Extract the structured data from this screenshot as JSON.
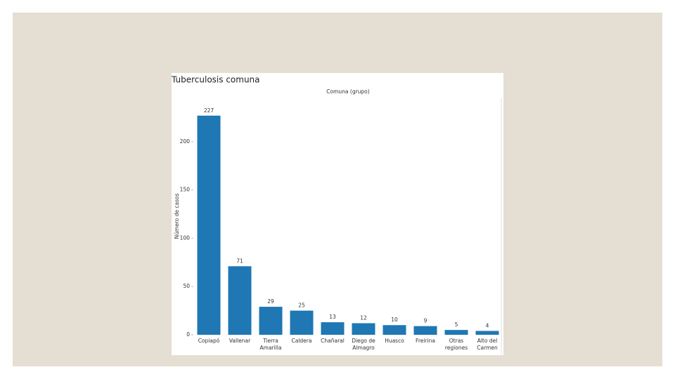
{
  "chart_data": {
    "type": "bar",
    "title": "Tuberculosis comuna",
    "x_label": "Comuna (grupo)",
    "y_label": "Número de casos",
    "categories": [
      "Copiapó",
      "Vallenar",
      "Tierra Amarilla",
      "Caldera",
      "Chañaral",
      "Diego de Almagro",
      "Huasco",
      "Freirina",
      "Otras regiones",
      "Alto del Carmen"
    ],
    "values": [
      227,
      71,
      29,
      25,
      13,
      12,
      10,
      9,
      5,
      4
    ],
    "color": "#1f77b4",
    "ylim": [
      0,
      245
    ],
    "yticks": [
      0,
      50,
      100,
      150,
      200
    ],
    "grid": false
  }
}
